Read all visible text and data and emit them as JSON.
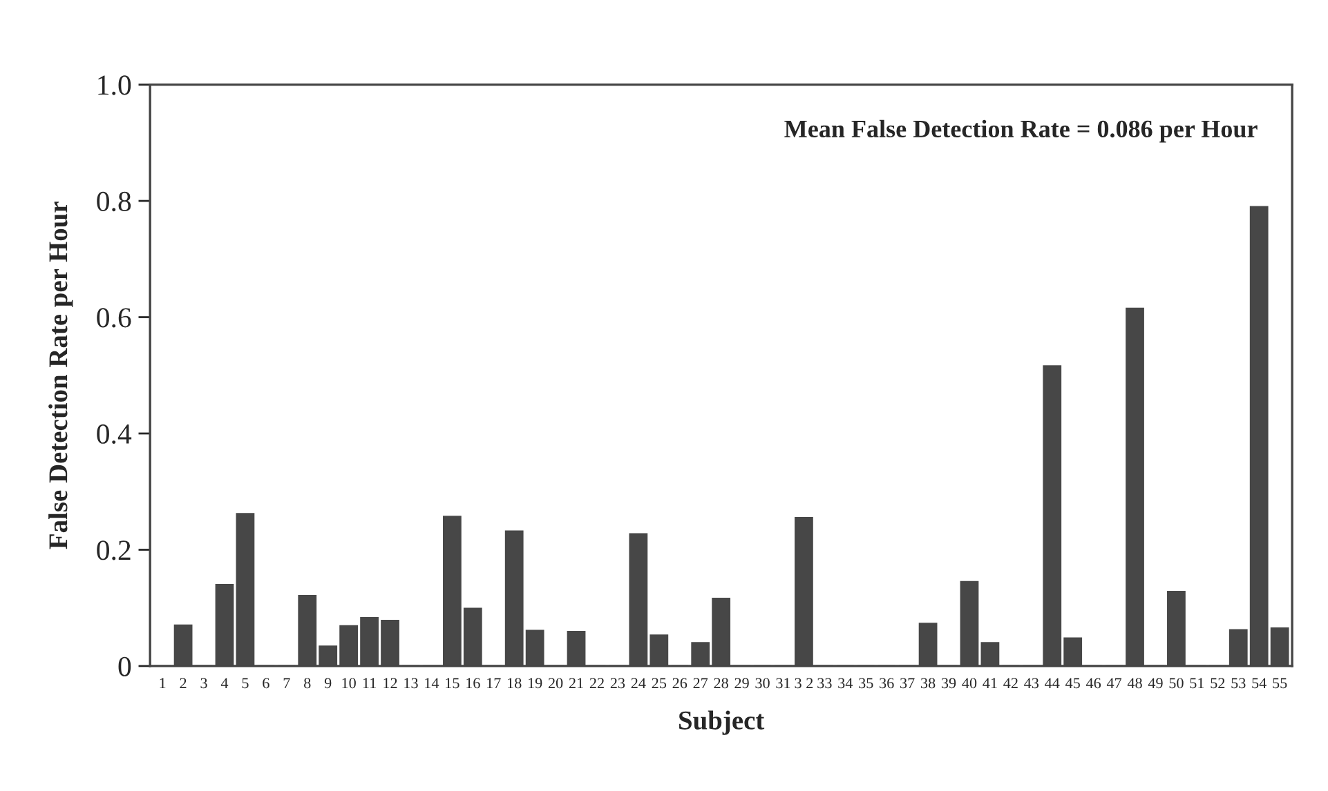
{
  "chart_data": {
    "type": "bar",
    "xlabel": "Subject",
    "ylabel": "False Detection Rate per Hour",
    "annotations": [
      "Mean False Detection Rate = 0.086 per Hour"
    ],
    "categories": [
      "1",
      "2",
      "3",
      "4",
      "5",
      "6",
      "7",
      "8",
      "9",
      "10",
      "11",
      "12",
      "13",
      "14",
      "15",
      "16",
      "17",
      "18",
      "19",
      "20",
      "21",
      "22",
      "23",
      "24",
      "25",
      "26",
      "27",
      "28",
      "29",
      "30",
      "31",
      "3 2",
      "33",
      "34",
      "35",
      "36",
      "37",
      "38",
      "39",
      "40",
      "41",
      "42",
      "43",
      "44",
      "45",
      "46",
      "47",
      "48",
      "49",
      "50",
      "51",
      "52",
      "53",
      "54",
      "55"
    ],
    "values": [
      0,
      0.07,
      0,
      0.14,
      0.262,
      0,
      0,
      0.121,
      0.034,
      0.069,
      0.083,
      0.078,
      0,
      0,
      0.257,
      0.099,
      0,
      0.232,
      0.061,
      0,
      0.059,
      0,
      0,
      0.227,
      0.053,
      0,
      0.04,
      0.116,
      0,
      0,
      0,
      0.255,
      0,
      0,
      0,
      0,
      0,
      0.073,
      0,
      0.145,
      0.04,
      0,
      0,
      0.516,
      0.048,
      0,
      0,
      0.615,
      0,
      0.128,
      0,
      0,
      0.062,
      0.79,
      0.065
    ],
    "color": "#474747",
    "ylim": [
      0,
      1.0
    ],
    "yticks": [
      {
        "value": 0,
        "label": "0"
      },
      0.2,
      0.4,
      0.6,
      0.8,
      {
        "value": 1.0,
        "label": "1.0"
      }
    ],
    "grid": false
  }
}
